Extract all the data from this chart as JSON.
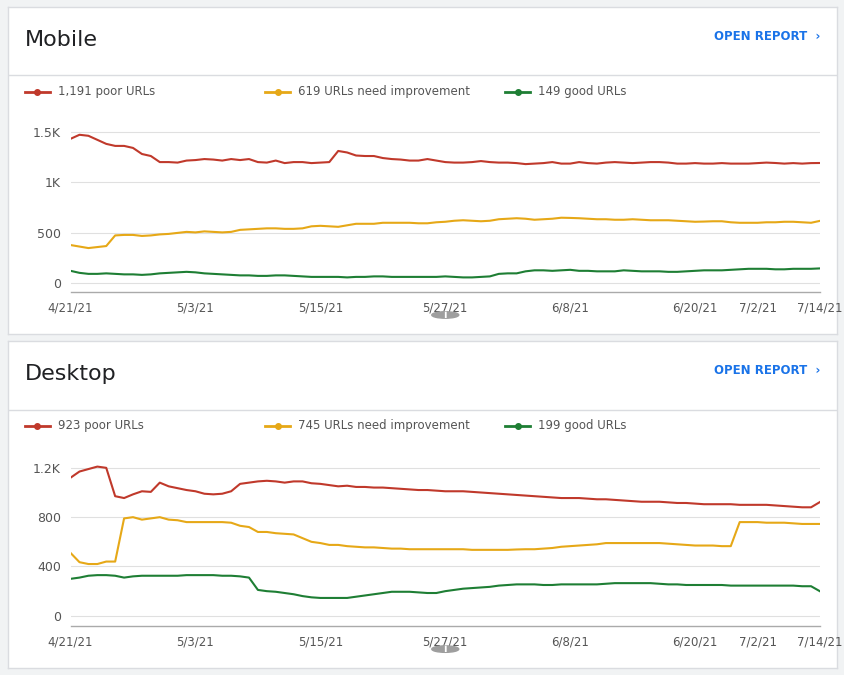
{
  "mobile": {
    "title": "Mobile",
    "poor_label": "1,191 poor URLs",
    "need_label": "619 URLs need improvement",
    "good_label": "149 good URLs",
    "yticks": [
      0,
      500,
      1000,
      1500
    ],
    "ytick_labels": [
      "0",
      "500",
      "1K",
      "1.5K"
    ],
    "ylim": [
      -80,
      1700
    ],
    "poor": [
      1430,
      1470,
      1460,
      1420,
      1380,
      1360,
      1360,
      1340,
      1280,
      1260,
      1200,
      1200,
      1195,
      1215,
      1220,
      1230,
      1225,
      1215,
      1230,
      1220,
      1230,
      1200,
      1195,
      1215,
      1190,
      1200,
      1200,
      1190,
      1195,
      1200,
      1310,
      1295,
      1265,
      1260,
      1260,
      1240,
      1230,
      1225,
      1215,
      1215,
      1230,
      1215,
      1200,
      1195,
      1195,
      1200,
      1210,
      1200,
      1195,
      1195,
      1190,
      1180,
      1185,
      1190,
      1200,
      1185,
      1185,
      1200,
      1190,
      1185,
      1195,
      1200,
      1195,
      1190,
      1195,
      1200,
      1200,
      1195,
      1185,
      1185,
      1190,
      1185,
      1185,
      1190,
      1185,
      1185,
      1185,
      1190,
      1195,
      1191,
      1185,
      1190,
      1185,
      1190,
      1191
    ],
    "need": [
      380,
      365,
      350,
      360,
      370,
      475,
      480,
      480,
      470,
      475,
      485,
      490,
      500,
      510,
      505,
      515,
      510,
      505,
      510,
      530,
      535,
      540,
      545,
      545,
      540,
      540,
      545,
      565,
      570,
      565,
      560,
      575,
      590,
      590,
      590,
      600,
      600,
      600,
      600,
      595,
      595,
      605,
      610,
      620,
      625,
      620,
      615,
      620,
      635,
      640,
      645,
      640,
      630,
      635,
      640,
      650,
      648,
      645,
      640,
      635,
      635,
      630,
      630,
      635,
      630,
      625,
      625,
      625,
      620,
      615,
      610,
      612,
      615,
      615,
      605,
      600,
      600,
      600,
      605,
      605,
      610,
      610,
      605,
      600,
      619
    ],
    "good": [
      125,
      105,
      95,
      95,
      100,
      95,
      90,
      90,
      85,
      90,
      100,
      105,
      110,
      115,
      110,
      100,
      95,
      90,
      85,
      80,
      80,
      75,
      75,
      80,
      80,
      75,
      70,
      65,
      65,
      65,
      65,
      60,
      65,
      65,
      70,
      70,
      65,
      65,
      65,
      65,
      65,
      65,
      70,
      65,
      60,
      60,
      65,
      70,
      95,
      100,
      100,
      120,
      130,
      130,
      125,
      130,
      135,
      125,
      125,
      120,
      120,
      120,
      130,
      125,
      120,
      120,
      120,
      115,
      115,
      120,
      125,
      130,
      130,
      130,
      135,
      140,
      145,
      145,
      145,
      140,
      140,
      145,
      145,
      145,
      149
    ]
  },
  "desktop": {
    "title": "Desktop",
    "poor_label": "923 poor URLs",
    "need_label": "745 URLs need improvement",
    "good_label": "199 good URLs",
    "yticks": [
      0,
      400,
      800,
      1200
    ],
    "ytick_labels": [
      "0",
      "400",
      "800",
      "1.2K"
    ],
    "ylim": [
      -80,
      1380
    ],
    "poor": [
      1120,
      1170,
      1190,
      1210,
      1200,
      970,
      955,
      985,
      1010,
      1005,
      1080,
      1050,
      1035,
      1020,
      1010,
      990,
      985,
      990,
      1010,
      1070,
      1080,
      1090,
      1095,
      1090,
      1080,
      1090,
      1090,
      1075,
      1070,
      1060,
      1050,
      1055,
      1045,
      1045,
      1040,
      1040,
      1035,
      1030,
      1025,
      1020,
      1020,
      1015,
      1010,
      1010,
      1010,
      1005,
      1000,
      995,
      990,
      985,
      980,
      975,
      970,
      965,
      960,
      955,
      955,
      955,
      950,
      945,
      945,
      940,
      935,
      930,
      925,
      925,
      925,
      920,
      915,
      915,
      910,
      905,
      905,
      905,
      905,
      900,
      900,
      900,
      900,
      895,
      890,
      885,
      880,
      880,
      923
    ],
    "need": [
      510,
      435,
      420,
      420,
      440,
      440,
      790,
      800,
      780,
      790,
      800,
      780,
      775,
      760,
      760,
      760,
      760,
      760,
      755,
      730,
      720,
      680,
      680,
      670,
      665,
      660,
      630,
      600,
      590,
      575,
      575,
      565,
      560,
      555,
      555,
      550,
      545,
      545,
      540,
      540,
      540,
      540,
      540,
      540,
      540,
      535,
      535,
      535,
      535,
      535,
      538,
      540,
      540,
      545,
      550,
      560,
      565,
      570,
      575,
      580,
      590,
      590,
      590,
      590,
      590,
      590,
      590,
      585,
      580,
      575,
      570,
      570,
      570,
      565,
      565,
      760,
      760,
      760,
      755,
      755,
      755,
      750,
      745,
      745,
      745
    ],
    "good": [
      300,
      310,
      325,
      330,
      330,
      325,
      310,
      320,
      325,
      325,
      325,
      325,
      325,
      330,
      330,
      330,
      330,
      325,
      325,
      320,
      310,
      210,
      200,
      195,
      185,
      175,
      160,
      150,
      145,
      145,
      145,
      145,
      155,
      165,
      175,
      185,
      195,
      195,
      195,
      190,
      185,
      185,
      200,
      210,
      220,
      225,
      230,
      235,
      245,
      250,
      255,
      255,
      255,
      250,
      250,
      255,
      255,
      255,
      255,
      255,
      260,
      265,
      265,
      265,
      265,
      265,
      260,
      255,
      255,
      250,
      250,
      250,
      250,
      250,
      245,
      245,
      245,
      245,
      245,
      245,
      245,
      245,
      240,
      240,
      199
    ]
  },
  "colors": {
    "poor": "#c0392b",
    "need": "#e6a817",
    "good": "#1e7e34",
    "background": "#ffffff",
    "panel_bg": "#ffffff",
    "grid": "#e0e0e0",
    "title_color": "#202124",
    "open_report_color": "#1a73e8",
    "axis_line": "#aaaaaa",
    "annotation_circle": "#9e9e9e",
    "annotation_text": "#ffffff"
  },
  "x_tick_labels": [
    "4/21/21",
    "5/3/21",
    "5/15/21",
    "5/27/21",
    "6/8/21",
    "6/20/21",
    "7/2/21",
    "7/14/21"
  ],
  "x_tick_positions": [
    0,
    14,
    28,
    42,
    56,
    70,
    77,
    84
  ]
}
